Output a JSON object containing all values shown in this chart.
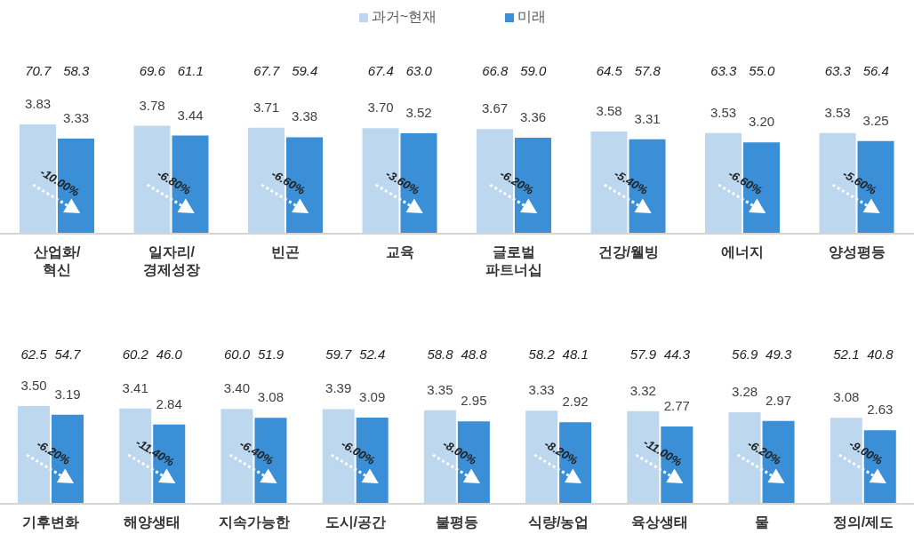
{
  "chart_data": [
    {
      "type": "bar",
      "legend": "top",
      "categories": [
        "산업화/\n혁신",
        "일자리/\n경제성장",
        "빈곤",
        "교육",
        "글로벌\n파트너십",
        "건강/웰빙",
        "에너지",
        "양성평등"
      ],
      "series": [
        {
          "name": "과거~현재",
          "color": "#bdd7ee",
          "values": [
            3.83,
            3.78,
            3.71,
            3.7,
            3.67,
            3.58,
            3.53,
            3.53
          ],
          "value_labels": [
            "3.83",
            "3.78",
            "3.71",
            "3.70",
            "3.67",
            "3.58",
            "3.53",
            "3.53"
          ]
        },
        {
          "name": "미래",
          "color": "#3b8fd6",
          "values": [
            3.33,
            3.44,
            3.38,
            3.52,
            3.36,
            3.31,
            3.2,
            3.25
          ],
          "value_labels": [
            "3.33",
            "3.44",
            "3.38",
            "3.52",
            "3.36",
            "3.31",
            "3.20",
            "3.25"
          ]
        }
      ],
      "annotations": [
        "70.7",
        "58.3",
        "69.6",
        "61.1",
        "67.7",
        "59.4",
        "67.4",
        "63.0",
        "66.8",
        "59.0",
        "64.5",
        "57.8",
        "63.3",
        "55.0",
        "63.3",
        "56.4",
        {
          "text": "-10.00%",
          "x": "산업화/\n혁신"
        },
        {
          "text": "-6.80%",
          "x": "일자리/\n경제성장"
        },
        {
          "text": "-6.60%",
          "x": "빈곤"
        },
        {
          "text": "-3.60%",
          "x": "교육"
        },
        {
          "text": "-6.20%",
          "x": "글로벌\n파트너십"
        },
        {
          "text": "-5.40%",
          "x": "건강/웰빙"
        },
        {
          "text": "-6.60%",
          "x": "에너지"
        },
        {
          "text": "-5.60%",
          "x": "양성평등"
        }
      ]
    },
    {
      "type": "bar",
      "categories": [
        "기후변화",
        "해양생태",
        "지속가능한",
        "도시/공간",
        "불평등",
        "식량/농업",
        "육상생태",
        "물",
        "정의/제도"
      ],
      "series": [
        {
          "color": "#bdd7ee",
          "values": [
            3.5,
            3.41,
            3.4,
            3.39,
            3.35,
            3.33,
            3.32,
            3.28,
            3.08
          ],
          "value_labels": [
            "3.50",
            "3.41",
            "3.40",
            "3.39",
            "3.35",
            "3.33",
            "3.32",
            "3.28",
            "3.08"
          ]
        },
        {
          "color": "#3b8fd6",
          "values": [
            3.19,
            2.84,
            3.08,
            3.09,
            2.95,
            2.92,
            2.77,
            2.97,
            2.63
          ],
          "value_labels": [
            "3.19",
            "2.84",
            "3.08",
            "3.09",
            "2.95",
            "2.92",
            "2.77",
            "2.97",
            "2.63"
          ]
        }
      ],
      "annotations": [
        "62.5",
        "54.7",
        "60.2",
        "46.0",
        "60.0",
        "51.9",
        "59.7",
        "52.4",
        "58.8",
        "48.8",
        "58.2",
        "48.1",
        "57.9",
        "44.3",
        "56.9",
        "49.3",
        "52.1",
        "40.8",
        {
          "text": "-6.20%",
          "x": "기후변화"
        },
        {
          "text": "-11.40%",
          "x": "해양생태"
        },
        {
          "text": "-6.40%",
          "x": "지속가능한"
        },
        {
          "text": "-6.00%",
          "x": "도시/공간"
        },
        {
          "text": "-8.00%",
          "x": "불평등"
        },
        {
          "text": "-8.20%",
          "x": "식량/농업"
        },
        {
          "text": "-11.00%",
          "x": "육상생태"
        },
        {
          "text": "-6.20%",
          "x": "물"
        },
        {
          "text": "-9.00%",
          "x": "정의/제도"
        }
      ]
    }
  ]
}
